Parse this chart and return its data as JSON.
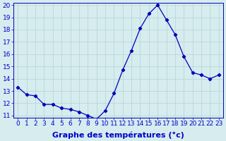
{
  "hours": [
    0,
    1,
    2,
    3,
    4,
    5,
    6,
    7,
    8,
    9,
    10,
    11,
    12,
    13,
    14,
    15,
    16,
    17,
    18,
    19,
    20,
    21,
    22,
    23
  ],
  "temperatures": [
    13.3,
    12.7,
    12.6,
    11.9,
    11.9,
    11.6,
    11.5,
    11.3,
    11.0,
    10.7,
    11.4,
    12.8,
    14.7,
    16.3,
    18.1,
    19.3,
    20.0,
    18.8,
    17.6,
    15.8,
    14.5,
    14.3,
    14.0,
    14.3
  ],
  "ylim": [
    11,
    20
  ],
  "xlim": [
    -0.5,
    23.5
  ],
  "yticks": [
    11,
    12,
    13,
    14,
    15,
    16,
    17,
    18,
    19,
    20
  ],
  "xticks": [
    0,
    1,
    2,
    3,
    4,
    5,
    6,
    7,
    8,
    9,
    10,
    11,
    12,
    13,
    14,
    15,
    16,
    17,
    18,
    19,
    20,
    21,
    22,
    23
  ],
  "line_color": "#0000bb",
  "marker": "D",
  "marker_size": 2.2,
  "bg_color": "#d6ecee",
  "grid_color": "#b8d8da",
  "xlabel": "Graphe des températures (°c)",
  "xlabel_color": "#0000cc",
  "tick_color": "#0000cc",
  "label_fontsize": 6.5,
  "xlabel_fontsize": 8.0,
  "axis_label_color": "#0000cc"
}
